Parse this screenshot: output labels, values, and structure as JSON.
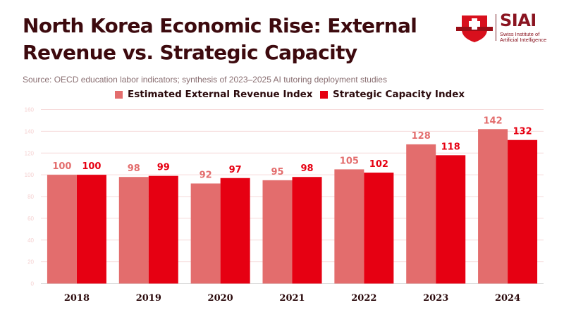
{
  "header": {
    "title": "North Korea Economic Rise: External Revenue vs. Strategic Capacity",
    "source": "Source: OECD education labor indicators; synthesis of 2023–2025 AI tutoring deployment studies"
  },
  "logo": {
    "name": "SIAI",
    "subtitle_line1": "Swiss Institute of",
    "subtitle_line2": "Artificial Intelligence",
    "shield_icon": "swiss-cross-shield-icon"
  },
  "colors": {
    "title": "#3d0a0e",
    "series1": "#e36d6d",
    "series2": "#e60012",
    "grid": "#f6dada",
    "tick": "#f5d0d0",
    "category_label": "#2b0a0c"
  },
  "chart_data": {
    "type": "bar",
    "title": "North Korea Economic Rise: External Revenue vs. Strategic Capacity",
    "xlabel": "",
    "ylabel": "",
    "categories": [
      "2018",
      "2019",
      "2020",
      "2021",
      "2022",
      "2023",
      "2024"
    ],
    "series": [
      {
        "name": "Estimated External Revenue Index",
        "values": [
          100,
          98,
          92,
          95,
          105,
          128,
          142
        ]
      },
      {
        "name": "Strategic Capacity Index",
        "values": [
          100,
          99,
          97,
          98,
          102,
          118,
          132
        ]
      }
    ],
    "ylim": [
      0,
      160
    ],
    "yticks": [
      0,
      20,
      40,
      60,
      80,
      100,
      120,
      140,
      160
    ],
    "grid": true,
    "legend": "top-center",
    "data_labels": true
  }
}
